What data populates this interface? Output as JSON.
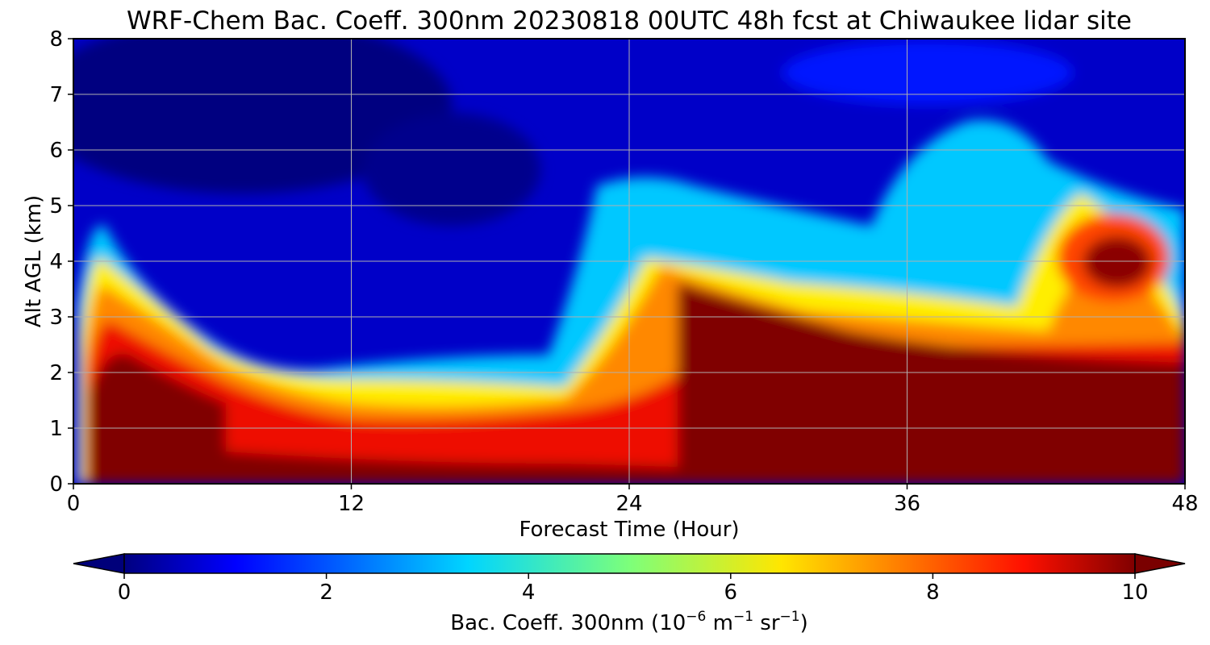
{
  "chart_data": {
    "type": "heatmap",
    "title": "WRF-Chem Bac. Coeff. 300nm  20230818 00UTC 48h fcst at Chiwaukee lidar site",
    "xlabel": "Forecast Time (Hour)",
    "ylabel": "Alt AGL (km)",
    "xlim": [
      0,
      48
    ],
    "ylim": [
      0,
      8
    ],
    "x_ticks": [
      0,
      12,
      24,
      36,
      48
    ],
    "y_ticks": [
      0,
      1,
      2,
      3,
      4,
      5,
      6,
      7,
      8
    ],
    "grid": true,
    "colormap": "jet",
    "colorbar": {
      "orientation": "horizontal",
      "placement": "bottom",
      "range": [
        0,
        10
      ],
      "ticks": [
        0,
        2,
        4,
        6,
        8,
        10
      ],
      "extend": "both",
      "label_main": "Bac. Coeff. 300nm  (10",
      "label_exp1": "−6",
      "label_mid": " m",
      "label_exp2": "−1",
      "label_mid2": " sr",
      "label_exp3": "−1",
      "label_end": ")"
    },
    "features": [
      {
        "region": "surface aerosol layer",
        "x_range": [
          1,
          48
        ],
        "alt_top_km_approx": [
          1.8,
          4.2
        ],
        "value_approx": 10
      },
      {
        "region": "elevated layer",
        "x_center": 45,
        "alt_center_km": 4,
        "value_approx": 10
      },
      {
        "region": "upper troposphere",
        "alt_km": [
          5,
          8
        ],
        "value_approx": 0.5
      }
    ]
  }
}
